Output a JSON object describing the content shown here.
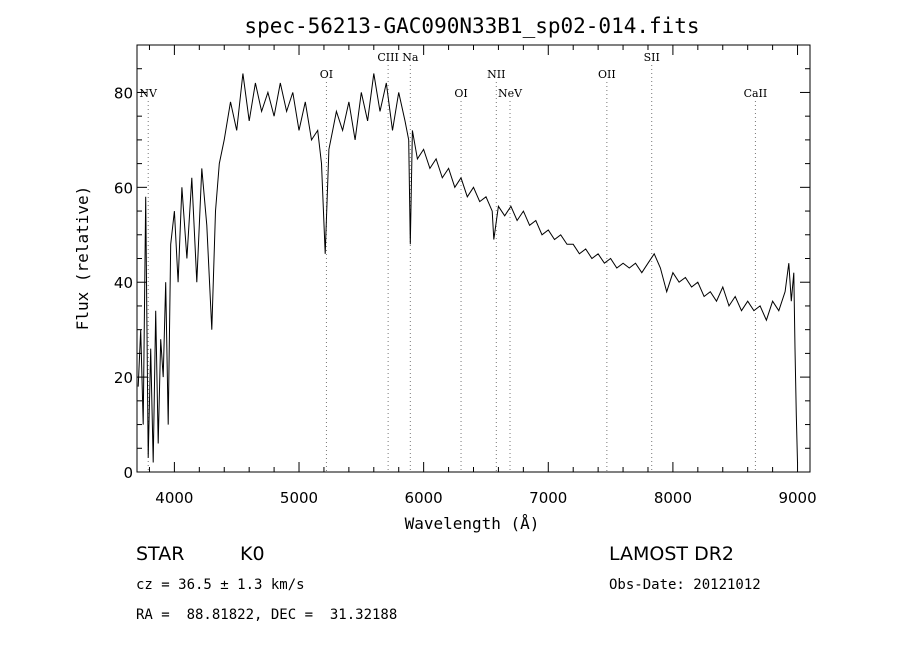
{
  "chart_data": {
    "type": "line",
    "title": "spec-56213-GAC090N33B1_sp02-014.fits",
    "xlabel": "Wavelength (Å)",
    "ylabel": "Flux (relative)",
    "xlim": [
      3700,
      9100
    ],
    "ylim": [
      0,
      90
    ],
    "xticks": [
      4000,
      5000,
      6000,
      7000,
      8000,
      9000
    ],
    "yticks": [
      0,
      20,
      40,
      60,
      80
    ],
    "grid": false,
    "line_color": "#000000",
    "marker_color": "#000000",
    "series": [
      {
        "x": [
          3710,
          3730,
          3750,
          3770,
          3790,
          3810,
          3830,
          3850,
          3870,
          3890,
          3910,
          3930,
          3950,
          3970,
          4000,
          4030,
          4060,
          4100,
          4140,
          4180,
          4220,
          4260,
          4300,
          4330,
          4360,
          4400,
          4450,
          4500,
          4550,
          4600,
          4650,
          4700,
          4750,
          4800,
          4850,
          4900,
          4950,
          5000,
          5050,
          5100,
          5150,
          5180,
          5210,
          5240,
          5270,
          5300,
          5350,
          5400,
          5450,
          5500,
          5550,
          5600,
          5650,
          5700,
          5750,
          5800,
          5850,
          5880,
          5893,
          5910,
          5950,
          6000,
          6050,
          6100,
          6150,
          6200,
          6250,
          6300,
          6350,
          6400,
          6450,
          6500,
          6550,
          6563,
          6600,
          6650,
          6700,
          6750,
          6800,
          6850,
          6900,
          6950,
          7000,
          7050,
          7100,
          7150,
          7200,
          7250,
          7300,
          7350,
          7400,
          7450,
          7500,
          7550,
          7600,
          7650,
          7700,
          7750,
          7800,
          7850,
          7900,
          7950,
          8000,
          8050,
          8100,
          8150,
          8200,
          8250,
          8300,
          8350,
          8400,
          8450,
          8500,
          8550,
          8600,
          8650,
          8700,
          8750,
          8800,
          8850,
          8900,
          8930,
          8950,
          8970,
          8980,
          8990,
          9000
        ],
        "y": [
          18,
          30,
          10,
          58,
          3,
          26,
          2,
          34,
          6,
          28,
          20,
          40,
          10,
          48,
          55,
          40,
          60,
          45,
          62,
          40,
          64,
          52,
          30,
          55,
          65,
          70,
          78,
          72,
          84,
          74,
          82,
          76,
          80,
          75,
          82,
          76,
          80,
          72,
          78,
          70,
          72,
          65,
          46,
          68,
          72,
          76,
          72,
          78,
          70,
          80,
          74,
          84,
          76,
          82,
          72,
          80,
          74,
          70,
          48,
          72,
          66,
          68,
          64,
          66,
          62,
          64,
          60,
          62,
          58,
          60,
          57,
          58,
          55,
          49,
          56,
          54,
          56,
          53,
          55,
          52,
          53,
          50,
          51,
          49,
          50,
          48,
          48,
          46,
          47,
          45,
          46,
          44,
          45,
          43,
          44,
          43,
          44,
          42,
          44,
          46,
          43,
          38,
          42,
          40,
          41,
          39,
          40,
          37,
          38,
          36,
          39,
          35,
          37,
          34,
          36,
          34,
          35,
          32,
          36,
          34,
          38,
          44,
          36,
          42,
          26,
          12,
          2
        ]
      }
    ],
    "line_markers": [
      {
        "label": "NV",
        "x": 3790,
        "label_row": 2
      },
      {
        "label": "OI",
        "x": 5220,
        "label_row": 1
      },
      {
        "label": "CIII",
        "x": 5715,
        "label_row": 0
      },
      {
        "label": "Na",
        "x": 5893,
        "label_row": 0
      },
      {
        "label": "OI",
        "x": 6300,
        "label_row": 2
      },
      {
        "label": "NII",
        "x": 6583,
        "label_row": 1
      },
      {
        "label": "NeV",
        "x": 6693,
        "label_row": 2
      },
      {
        "label": "OII",
        "x": 7470,
        "label_row": 1
      },
      {
        "label": "SII",
        "x": 7830,
        "label_row": 0
      },
      {
        "label": "CaII",
        "x": 8662,
        "label_row": 2
      }
    ]
  },
  "info": {
    "object_class": "STAR",
    "subclass": "K0",
    "survey": "LAMOST DR2",
    "redshift": "cz = 36.5 ± 1.3 km/s",
    "obs_date": "Obs-Date: 20121012",
    "coords": "RA =  88.81822, DEC =  31.32188"
  }
}
